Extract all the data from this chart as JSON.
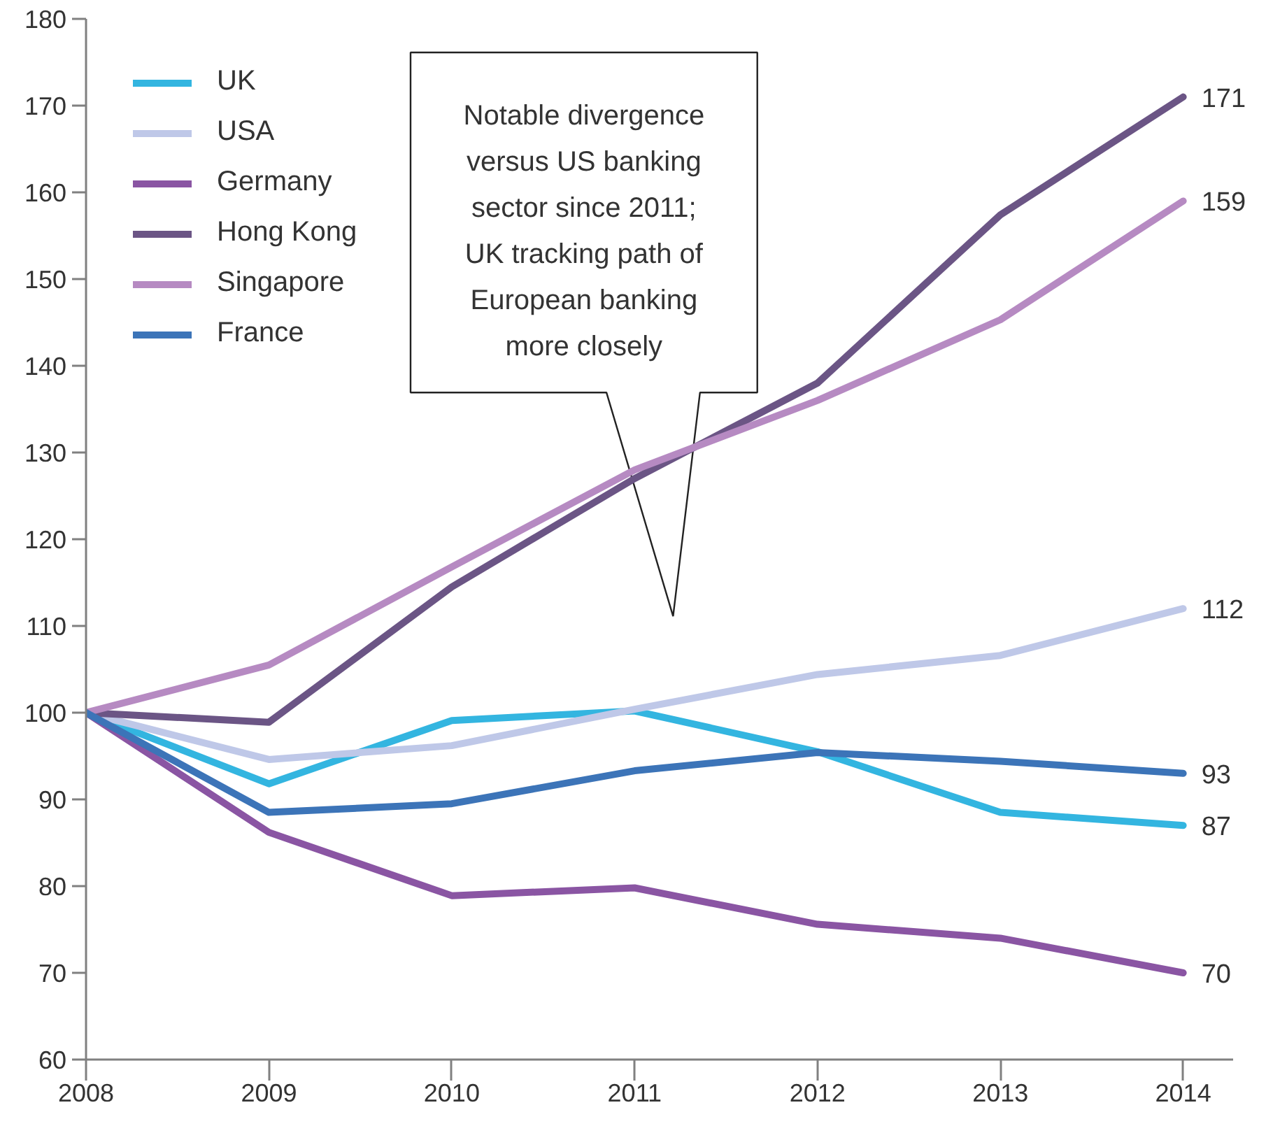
{
  "chart_data": {
    "type": "line",
    "x": [
      2008,
      2009,
      2010,
      2011,
      2012,
      2013,
      2014
    ],
    "xlim": [
      2008,
      2014.27
    ],
    "xticks": [
      2008,
      2009,
      2010,
      2011,
      2012,
      2013,
      2014
    ],
    "ylim": [
      60,
      180
    ],
    "yticks": [
      60,
      70,
      80,
      90,
      100,
      110,
      120,
      130,
      140,
      150,
      160,
      170,
      180
    ],
    "grid": false,
    "legend": "top left",
    "line_style": "solid",
    "series": [
      {
        "name": "UK",
        "color": "#33b5e0",
        "values": [
          100,
          91.8,
          99.1,
          100.2,
          95.5,
          88.5,
          87
        ],
        "value_labels": [
          null,
          null,
          null,
          null,
          null,
          null,
          "87"
        ]
      },
      {
        "name": "USA",
        "color": "#bfc8e8",
        "values": [
          100,
          94.6,
          96.2,
          100.4,
          104.4,
          106.6,
          112
        ],
        "value_labels": [
          null,
          null,
          null,
          null,
          null,
          null,
          "112"
        ]
      },
      {
        "name": "Germany",
        "color": "#8a55a3",
        "values": [
          100,
          86.2,
          78.9,
          79.8,
          75.6,
          74.0,
          70
        ],
        "value_labels": [
          null,
          null,
          null,
          null,
          null,
          null,
          "70"
        ]
      },
      {
        "name": "Hong Kong",
        "color": "#6b5585",
        "values": [
          100,
          98.9,
          114.5,
          127,
          138,
          157.4,
          171
        ],
        "value_labels": [
          null,
          null,
          null,
          null,
          null,
          null,
          "171"
        ]
      },
      {
        "name": "Singapore",
        "color": "#b68ac2",
        "values": [
          100,
          105.5,
          116.8,
          128,
          136,
          145.3,
          159
        ],
        "value_labels": [
          null,
          null,
          null,
          null,
          null,
          null,
          "159"
        ]
      },
      {
        "name": "France",
        "color": "#3c74b8",
        "values": [
          100,
          88.5,
          89.5,
          93.3,
          95.4,
          94.4,
          93
        ],
        "value_labels": [
          null,
          null,
          null,
          null,
          null,
          null,
          "93"
        ]
      }
    ],
    "annotations": [
      "Notable divergence\nversus US banking\nsector since 2011;\nUK tracking path of\nEuropean banking\nmore closely"
    ]
  }
}
